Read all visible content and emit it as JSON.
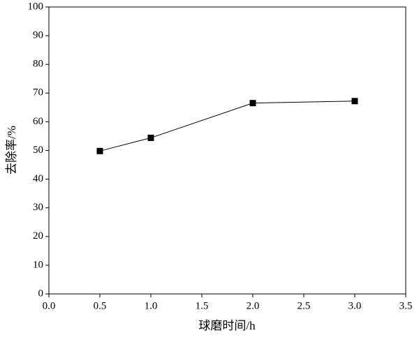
{
  "chart_data": {
    "type": "line",
    "x_label": "球磨时间/h",
    "y_label": "去除率/%",
    "x": [
      0.5,
      1.0,
      2.0,
      3.0
    ],
    "values": [
      49.8,
      54.4,
      66.5,
      67.2
    ],
    "color": "#000000",
    "xlim": [
      0,
      3.5
    ],
    "xticks": [
      {
        "value": 0,
        "label": "0.0"
      },
      0.5,
      {
        "value": 1,
        "label": "1.0"
      },
      1.5,
      {
        "value": 2,
        "label": "2.0"
      },
      2.5,
      {
        "value": 3,
        "label": "3.0"
      },
      3.5
    ],
    "ylim": [
      0,
      100
    ],
    "yticks": [
      0,
      10,
      20,
      30,
      40,
      50,
      60,
      70,
      80,
      90,
      100
    ],
    "grid": false
  }
}
